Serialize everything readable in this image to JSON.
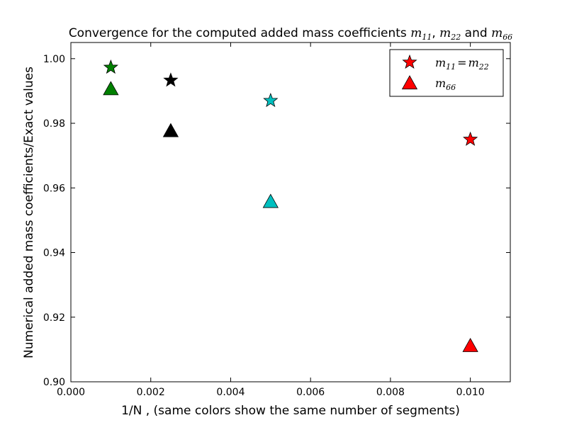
{
  "chart_data": {
    "type": "scatter",
    "title": {
      "prefix": "Convergence for the computed added mass coefficients ",
      "m11": "m",
      "m11_sub": "11",
      "sep1": ", ",
      "m22": "m",
      "m22_sub": "22",
      "sep2": " and ",
      "m66": "m",
      "m66_sub": "66"
    },
    "xlabel": "1/N , (same colors show the same number of segments)",
    "ylabel": "Numerical added mass coefficients/Exact values",
    "xlim": [
      0.0,
      0.011
    ],
    "ylim": [
      0.9,
      1.005
    ],
    "xticks": [
      "0.000",
      "0.002",
      "0.004",
      "0.006",
      "0.008",
      "0.010"
    ],
    "xtick_values": [
      0.0,
      0.002,
      0.004,
      0.006,
      0.008,
      0.01
    ],
    "yticks": [
      "0.90",
      "0.92",
      "0.94",
      "0.96",
      "0.98",
      "1.00"
    ],
    "ytick_values": [
      0.9,
      0.92,
      0.94,
      0.96,
      0.98,
      1.0
    ],
    "grid": false,
    "legend_position": "top-right",
    "series": [
      {
        "name_parts": {
          "m": "m",
          "s1": "11",
          "eq": "=",
          "m2": "m",
          "s2": "22"
        },
        "marker": "star",
        "points": [
          {
            "x": 0.001,
            "y": 0.9973,
            "color": "#008000"
          },
          {
            "x": 0.0025,
            "y": 0.9933,
            "color": "#000000"
          },
          {
            "x": 0.005,
            "y": 0.987,
            "color": "#00bfbf"
          },
          {
            "x": 0.01,
            "y": 0.975,
            "color": "#ff0000"
          }
        ]
      },
      {
        "name_parts": {
          "m": "m",
          "s1": "66"
        },
        "marker": "triangle",
        "points": [
          {
            "x": 0.001,
            "y": 0.9905,
            "color": "#008000"
          },
          {
            "x": 0.0025,
            "y": 0.9775,
            "color": "#000000"
          },
          {
            "x": 0.005,
            "y": 0.9556,
            "color": "#00bfbf"
          },
          {
            "x": 0.01,
            "y": 0.911,
            "color": "#ff0000"
          }
        ]
      }
    ],
    "legend_color": "#ff0000"
  }
}
